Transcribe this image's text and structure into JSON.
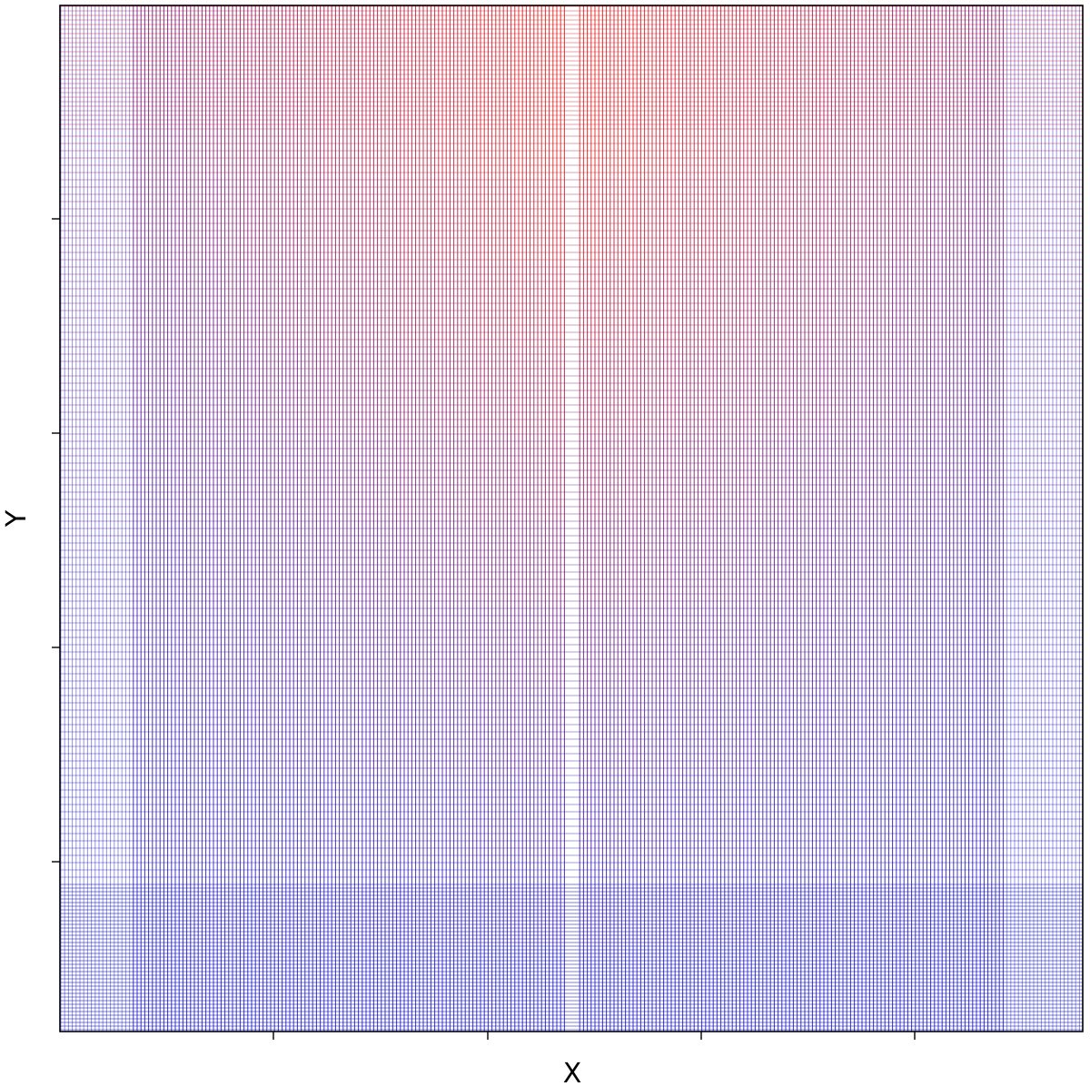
{
  "chart_data": {
    "type": "heatmap",
    "title": "",
    "xlabel": "X",
    "ylabel": "Y",
    "x_tick_labels": [
      "",
      "",
      "",
      ""
    ],
    "y_tick_labels": [
      "",
      "",
      "",
      ""
    ],
    "grid": false,
    "legend": "none",
    "colors": {
      "low": "#1010c8",
      "high": "#e8140a",
      "frame": "#000000"
    }
  }
}
